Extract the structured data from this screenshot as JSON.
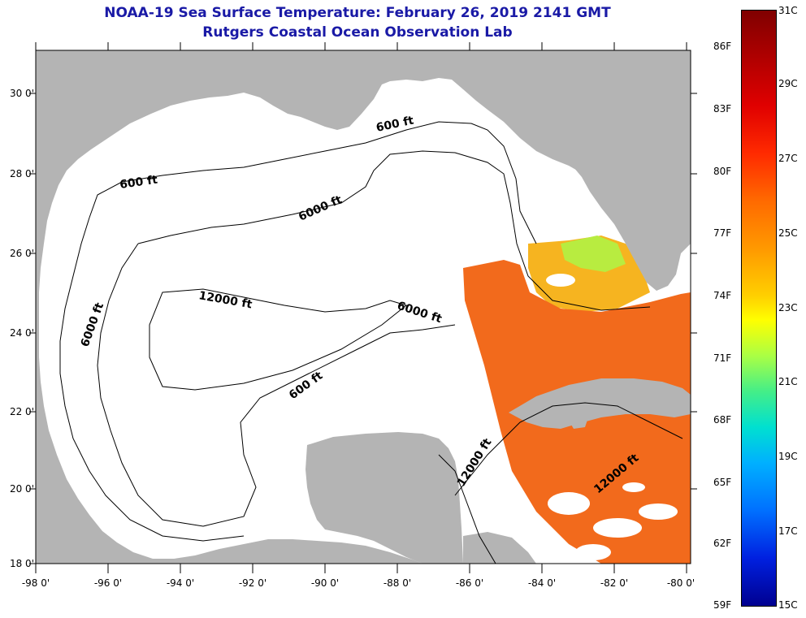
{
  "title_line1": "NOAA-19 Sea Surface Temperature:  February 26, 2019 2141 GMT",
  "title_line2": "Rutgers Coastal Ocean Observation Lab",
  "colors": {
    "land": "#b4b4b4",
    "water": "#ffffff",
    "contour": "#000000",
    "title": "#1a1aa6",
    "sst_warm": "#f26a1c",
    "sst_hot": "#e8501a",
    "sst_mid": "#f6b420",
    "sst_cool": "#b8ec40"
  },
  "axes": {
    "lon_labels": [
      "-98 0'",
      "-96 0'",
      "-94 0'",
      "-92 0'",
      "-90 0'",
      "-88 0'",
      "-86 0'",
      "-84 0'",
      "-82 0'",
      "-80 0'"
    ],
    "lat_labels": [
      "30 0'",
      "28 0'",
      "26 0'",
      "24 0'",
      "22 0'",
      "20 0'",
      "18 0'"
    ]
  },
  "contour_labels": {
    "a": "600 ft",
    "b": "600 ft",
    "c": "6000 ft",
    "d": "12000 ft",
    "e": "6000 ft",
    "f": "6000 ft",
    "g": "600 ft",
    "h": "12000 ft",
    "i": "12000 ft"
  },
  "colorbar": {
    "fahrenheit": [
      "86F",
      "83F",
      "80F",
      "77F",
      "74F",
      "71F",
      "68F",
      "65F",
      "62F",
      "59F"
    ],
    "celsius": [
      "31C",
      "29C",
      "27C",
      "25C",
      "23C",
      "21C",
      "19C",
      "17C",
      "15C"
    ]
  }
}
